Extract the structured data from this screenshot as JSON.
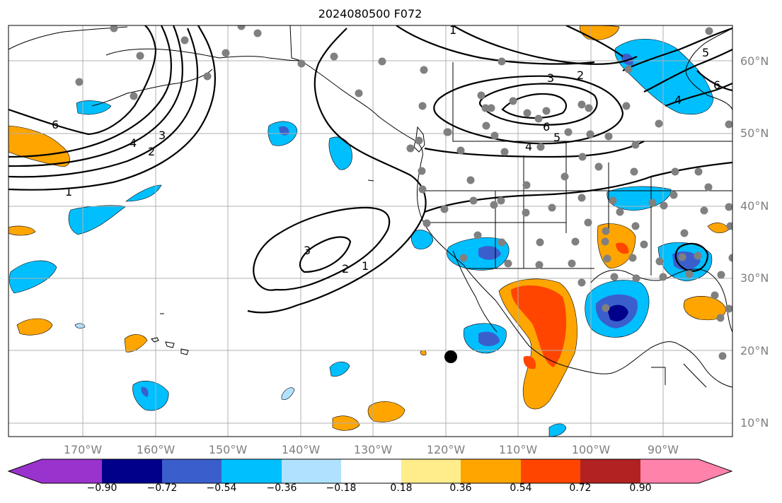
{
  "title": "2024080500 F072",
  "lat_labels": [
    "60°N",
    "50°N",
    "40°N",
    "30°N",
    "20°N",
    "10°N"
  ],
  "lon_labels": [
    "170°W",
    "160°W",
    "150°W",
    "140°W",
    "130°W",
    "120°W",
    "110°W",
    "100°W",
    "90°W"
  ],
  "contour_labels": [
    "1",
    "2",
    "3",
    "4",
    "5",
    "6"
  ],
  "colorbar": {
    "colors": [
      "#9a32cd",
      "#00008b",
      "#3a5fcd",
      "#00bfff",
      "#b0e2ff",
      "#ffffff",
      "#ffec8b",
      "#ffa500",
      "#ff4500",
      "#b22222",
      "#ff82ab"
    ],
    "tick_labels": [
      "−0.90",
      "−0.72",
      "−0.54",
      "−0.36",
      "−0.18",
      "0.18",
      "0.36",
      "0.54",
      "0.72",
      "0.90"
    ]
  },
  "colors": {
    "land_outline": "#000000",
    "grid": "#b0b0b0",
    "station_dot": "#808080",
    "contour": "#000000",
    "marker": "#000000"
  }
}
